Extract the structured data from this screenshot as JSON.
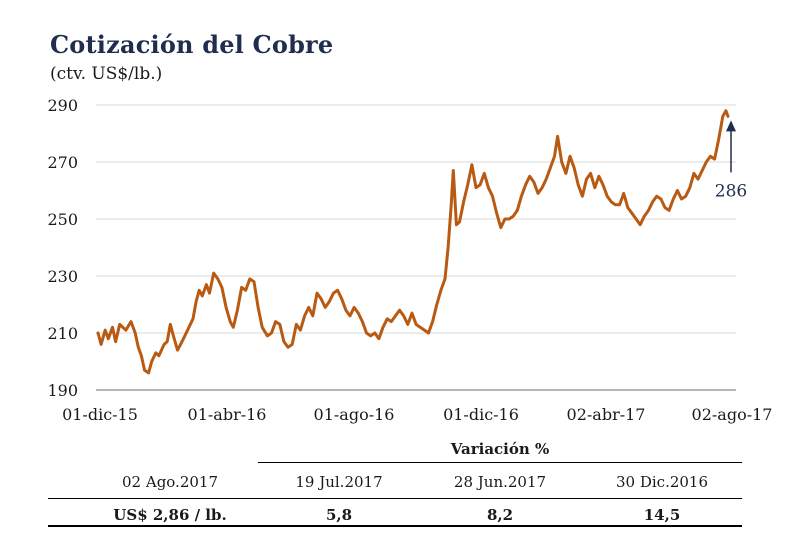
{
  "title": "Cotización del Cobre",
  "subtitle": "(ctv. US$/lb.)",
  "chart_data": {
    "type": "line",
    "title": "Cotización del Cobre",
    "ylabel": "(ctv. US$/lb.)",
    "ylim": [
      190,
      290
    ],
    "yticks": [
      "190",
      "210",
      "230",
      "250",
      "270",
      "290"
    ],
    "xticks": [
      "01-dic-15",
      "01-abr-16",
      "01-ago-16",
      "01-dic-16",
      "02-abr-17",
      "02-ago-17"
    ],
    "xrange": [
      "2015-12-01",
      "2017-08-02"
    ],
    "grid": "horizontal",
    "line_color": "#b85a12",
    "series": [
      {
        "points": [
          [
            "2015-12-01",
            210
          ],
          [
            "2015-12-04",
            206
          ],
          [
            "2015-12-08",
            211
          ],
          [
            "2015-12-11",
            208
          ],
          [
            "2015-12-15",
            212
          ],
          [
            "2015-12-18",
            207
          ],
          [
            "2015-12-22",
            213
          ],
          [
            "2015-12-28",
            211
          ],
          [
            "2016-01-02",
            214
          ],
          [
            "2016-01-06",
            210
          ],
          [
            "2016-01-09",
            205
          ],
          [
            "2016-01-12",
            202
          ],
          [
            "2016-01-15",
            197
          ],
          [
            "2016-01-19",
            196
          ],
          [
            "2016-01-22",
            200
          ],
          [
            "2016-01-26",
            203
          ],
          [
            "2016-01-29",
            202
          ],
          [
            "2016-02-03",
            206
          ],
          [
            "2016-02-06",
            207
          ],
          [
            "2016-02-09",
            213
          ],
          [
            "2016-02-12",
            209
          ],
          [
            "2016-02-16",
            204
          ],
          [
            "2016-02-19",
            206
          ],
          [
            "2016-02-23",
            209
          ],
          [
            "2016-02-27",
            212
          ],
          [
            "2016-03-02",
            215
          ],
          [
            "2016-03-05",
            221
          ],
          [
            "2016-03-08",
            225
          ],
          [
            "2016-03-11",
            223
          ],
          [
            "2016-03-15",
            227
          ],
          [
            "2016-03-18",
            224
          ],
          [
            "2016-03-22",
            231
          ],
          [
            "2016-03-26",
            229
          ],
          [
            "2016-03-30",
            226
          ],
          [
            "2016-04-03",
            219
          ],
          [
            "2016-04-07",
            214
          ],
          [
            "2016-04-10",
            212
          ],
          [
            "2016-04-14",
            218
          ],
          [
            "2016-04-18",
            226
          ],
          [
            "2016-04-22",
            225
          ],
          [
            "2016-04-26",
            229
          ],
          [
            "2016-04-30",
            228
          ],
          [
            "2016-05-04",
            219
          ],
          [
            "2016-05-08",
            212
          ],
          [
            "2016-05-13",
            209
          ],
          [
            "2016-05-17",
            210
          ],
          [
            "2016-05-21",
            214
          ],
          [
            "2016-05-25",
            213
          ],
          [
            "2016-05-29",
            207
          ],
          [
            "2016-06-02",
            205
          ],
          [
            "2016-06-06",
            206
          ],
          [
            "2016-06-10",
            213
          ],
          [
            "2016-06-14",
            211
          ],
          [
            "2016-06-18",
            216
          ],
          [
            "2016-06-22",
            219
          ],
          [
            "2016-06-26",
            216
          ],
          [
            "2016-06-30",
            224
          ],
          [
            "2016-07-04",
            222
          ],
          [
            "2016-07-08",
            219
          ],
          [
            "2016-07-12",
            221
          ],
          [
            "2016-07-16",
            224
          ],
          [
            "2016-07-20",
            225
          ],
          [
            "2016-07-24",
            222
          ],
          [
            "2016-07-28",
            218
          ],
          [
            "2016-08-01",
            216
          ],
          [
            "2016-08-05",
            219
          ],
          [
            "2016-08-09",
            217
          ],
          [
            "2016-08-13",
            214
          ],
          [
            "2016-08-17",
            210
          ],
          [
            "2016-08-21",
            209
          ],
          [
            "2016-08-25",
            210
          ],
          [
            "2016-08-29",
            208
          ],
          [
            "2016-09-02",
            212
          ],
          [
            "2016-09-06",
            215
          ],
          [
            "2016-09-10",
            214
          ],
          [
            "2016-09-14",
            216
          ],
          [
            "2016-09-18",
            218
          ],
          [
            "2016-09-22",
            216
          ],
          [
            "2016-09-26",
            213
          ],
          [
            "2016-09-30",
            217
          ],
          [
            "2016-10-04",
            213
          ],
          [
            "2016-10-08",
            212
          ],
          [
            "2016-10-12",
            211
          ],
          [
            "2016-10-16",
            210
          ],
          [
            "2016-10-20",
            214
          ],
          [
            "2016-10-24",
            220
          ],
          [
            "2016-10-28",
            225
          ],
          [
            "2016-11-01",
            229
          ],
          [
            "2016-11-04",
            240
          ],
          [
            "2016-11-07",
            255
          ],
          [
            "2016-11-09",
            267
          ],
          [
            "2016-11-12",
            248
          ],
          [
            "2016-11-15",
            249
          ],
          [
            "2016-11-19",
            256
          ],
          [
            "2016-11-23",
            262
          ],
          [
            "2016-11-27",
            269
          ],
          [
            "2016-12-01",
            261
          ],
          [
            "2016-12-05",
            262
          ],
          [
            "2016-12-09",
            266
          ],
          [
            "2016-12-13",
            261
          ],
          [
            "2016-12-17",
            258
          ],
          [
            "2016-12-21",
            252
          ],
          [
            "2016-12-25",
            247
          ],
          [
            "2016-12-29",
            250
          ],
          [
            "2017-01-02",
            250
          ],
          [
            "2017-01-06",
            251
          ],
          [
            "2017-01-10",
            253
          ],
          [
            "2017-01-14",
            258
          ],
          [
            "2017-01-18",
            262
          ],
          [
            "2017-01-22",
            265
          ],
          [
            "2017-01-26",
            263
          ],
          [
            "2017-01-30",
            259
          ],
          [
            "2017-02-03",
            261
          ],
          [
            "2017-02-07",
            264
          ],
          [
            "2017-02-11",
            268
          ],
          [
            "2017-02-15",
            272
          ],
          [
            "2017-02-18",
            279
          ],
          [
            "2017-02-22",
            270
          ],
          [
            "2017-02-26",
            266
          ],
          [
            "2017-03-02",
            272
          ],
          [
            "2017-03-06",
            268
          ],
          [
            "2017-03-10",
            262
          ],
          [
            "2017-03-14",
            258
          ],
          [
            "2017-03-18",
            264
          ],
          [
            "2017-03-22",
            266
          ],
          [
            "2017-03-26",
            261
          ],
          [
            "2017-03-30",
            265
          ],
          [
            "2017-04-03",
            262
          ],
          [
            "2017-04-07",
            258
          ],
          [
            "2017-04-11",
            256
          ],
          [
            "2017-04-15",
            255
          ],
          [
            "2017-04-19",
            255
          ],
          [
            "2017-04-23",
            259
          ],
          [
            "2017-04-27",
            254
          ],
          [
            "2017-05-01",
            252
          ],
          [
            "2017-05-05",
            250
          ],
          [
            "2017-05-09",
            248
          ],
          [
            "2017-05-13",
            251
          ],
          [
            "2017-05-17",
            253
          ],
          [
            "2017-05-21",
            256
          ],
          [
            "2017-05-25",
            258
          ],
          [
            "2017-05-29",
            257
          ],
          [
            "2017-06-02",
            254
          ],
          [
            "2017-06-06",
            253
          ],
          [
            "2017-06-10",
            257
          ],
          [
            "2017-06-14",
            260
          ],
          [
            "2017-06-18",
            257
          ],
          [
            "2017-06-22",
            258
          ],
          [
            "2017-06-26",
            261
          ],
          [
            "2017-06-30",
            266
          ],
          [
            "2017-07-04",
            264
          ],
          [
            "2017-07-08",
            267
          ],
          [
            "2017-07-12",
            270
          ],
          [
            "2017-07-16",
            272
          ],
          [
            "2017-07-20",
            271
          ],
          [
            "2017-07-24",
            278
          ],
          [
            "2017-07-28",
            286
          ],
          [
            "2017-07-31",
            288
          ],
          [
            "2017-08-02",
            286
          ]
        ]
      }
    ],
    "annotations": [
      {
        "text": "286",
        "x": "2017-08-02",
        "y": 286
      }
    ]
  },
  "table": {
    "header": "Variación %",
    "columns": [
      "02 Ago.2017",
      "19 Jul.2017",
      "28 Jun.2017",
      "30 Dic.2016"
    ],
    "values": [
      "US$ 2,86 / lb.",
      "5,8",
      "8,2",
      "14,5"
    ]
  }
}
